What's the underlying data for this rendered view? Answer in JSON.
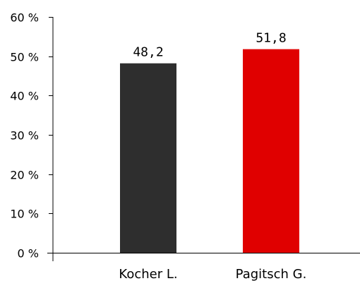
{
  "chart_data": {
    "type": "bar",
    "categories": [
      "Kocher L.",
      "Pagitsch G."
    ],
    "values": [
      48.2,
      51.8
    ],
    "data_labels": [
      "48,2",
      "51,8"
    ],
    "bar_colors": [
      "#2e2e2e",
      "#e00000"
    ],
    "ylim": [
      0,
      60
    ],
    "y_ticks": [
      0,
      10,
      20,
      30,
      40,
      50,
      60
    ],
    "y_tick_labels": [
      "0 %",
      "10 %",
      "20 %",
      "30 %",
      "40 %",
      "50 %",
      "60 %"
    ],
    "grid": false,
    "legend": "none",
    "title": "",
    "xlabel": "",
    "ylabel": ""
  }
}
